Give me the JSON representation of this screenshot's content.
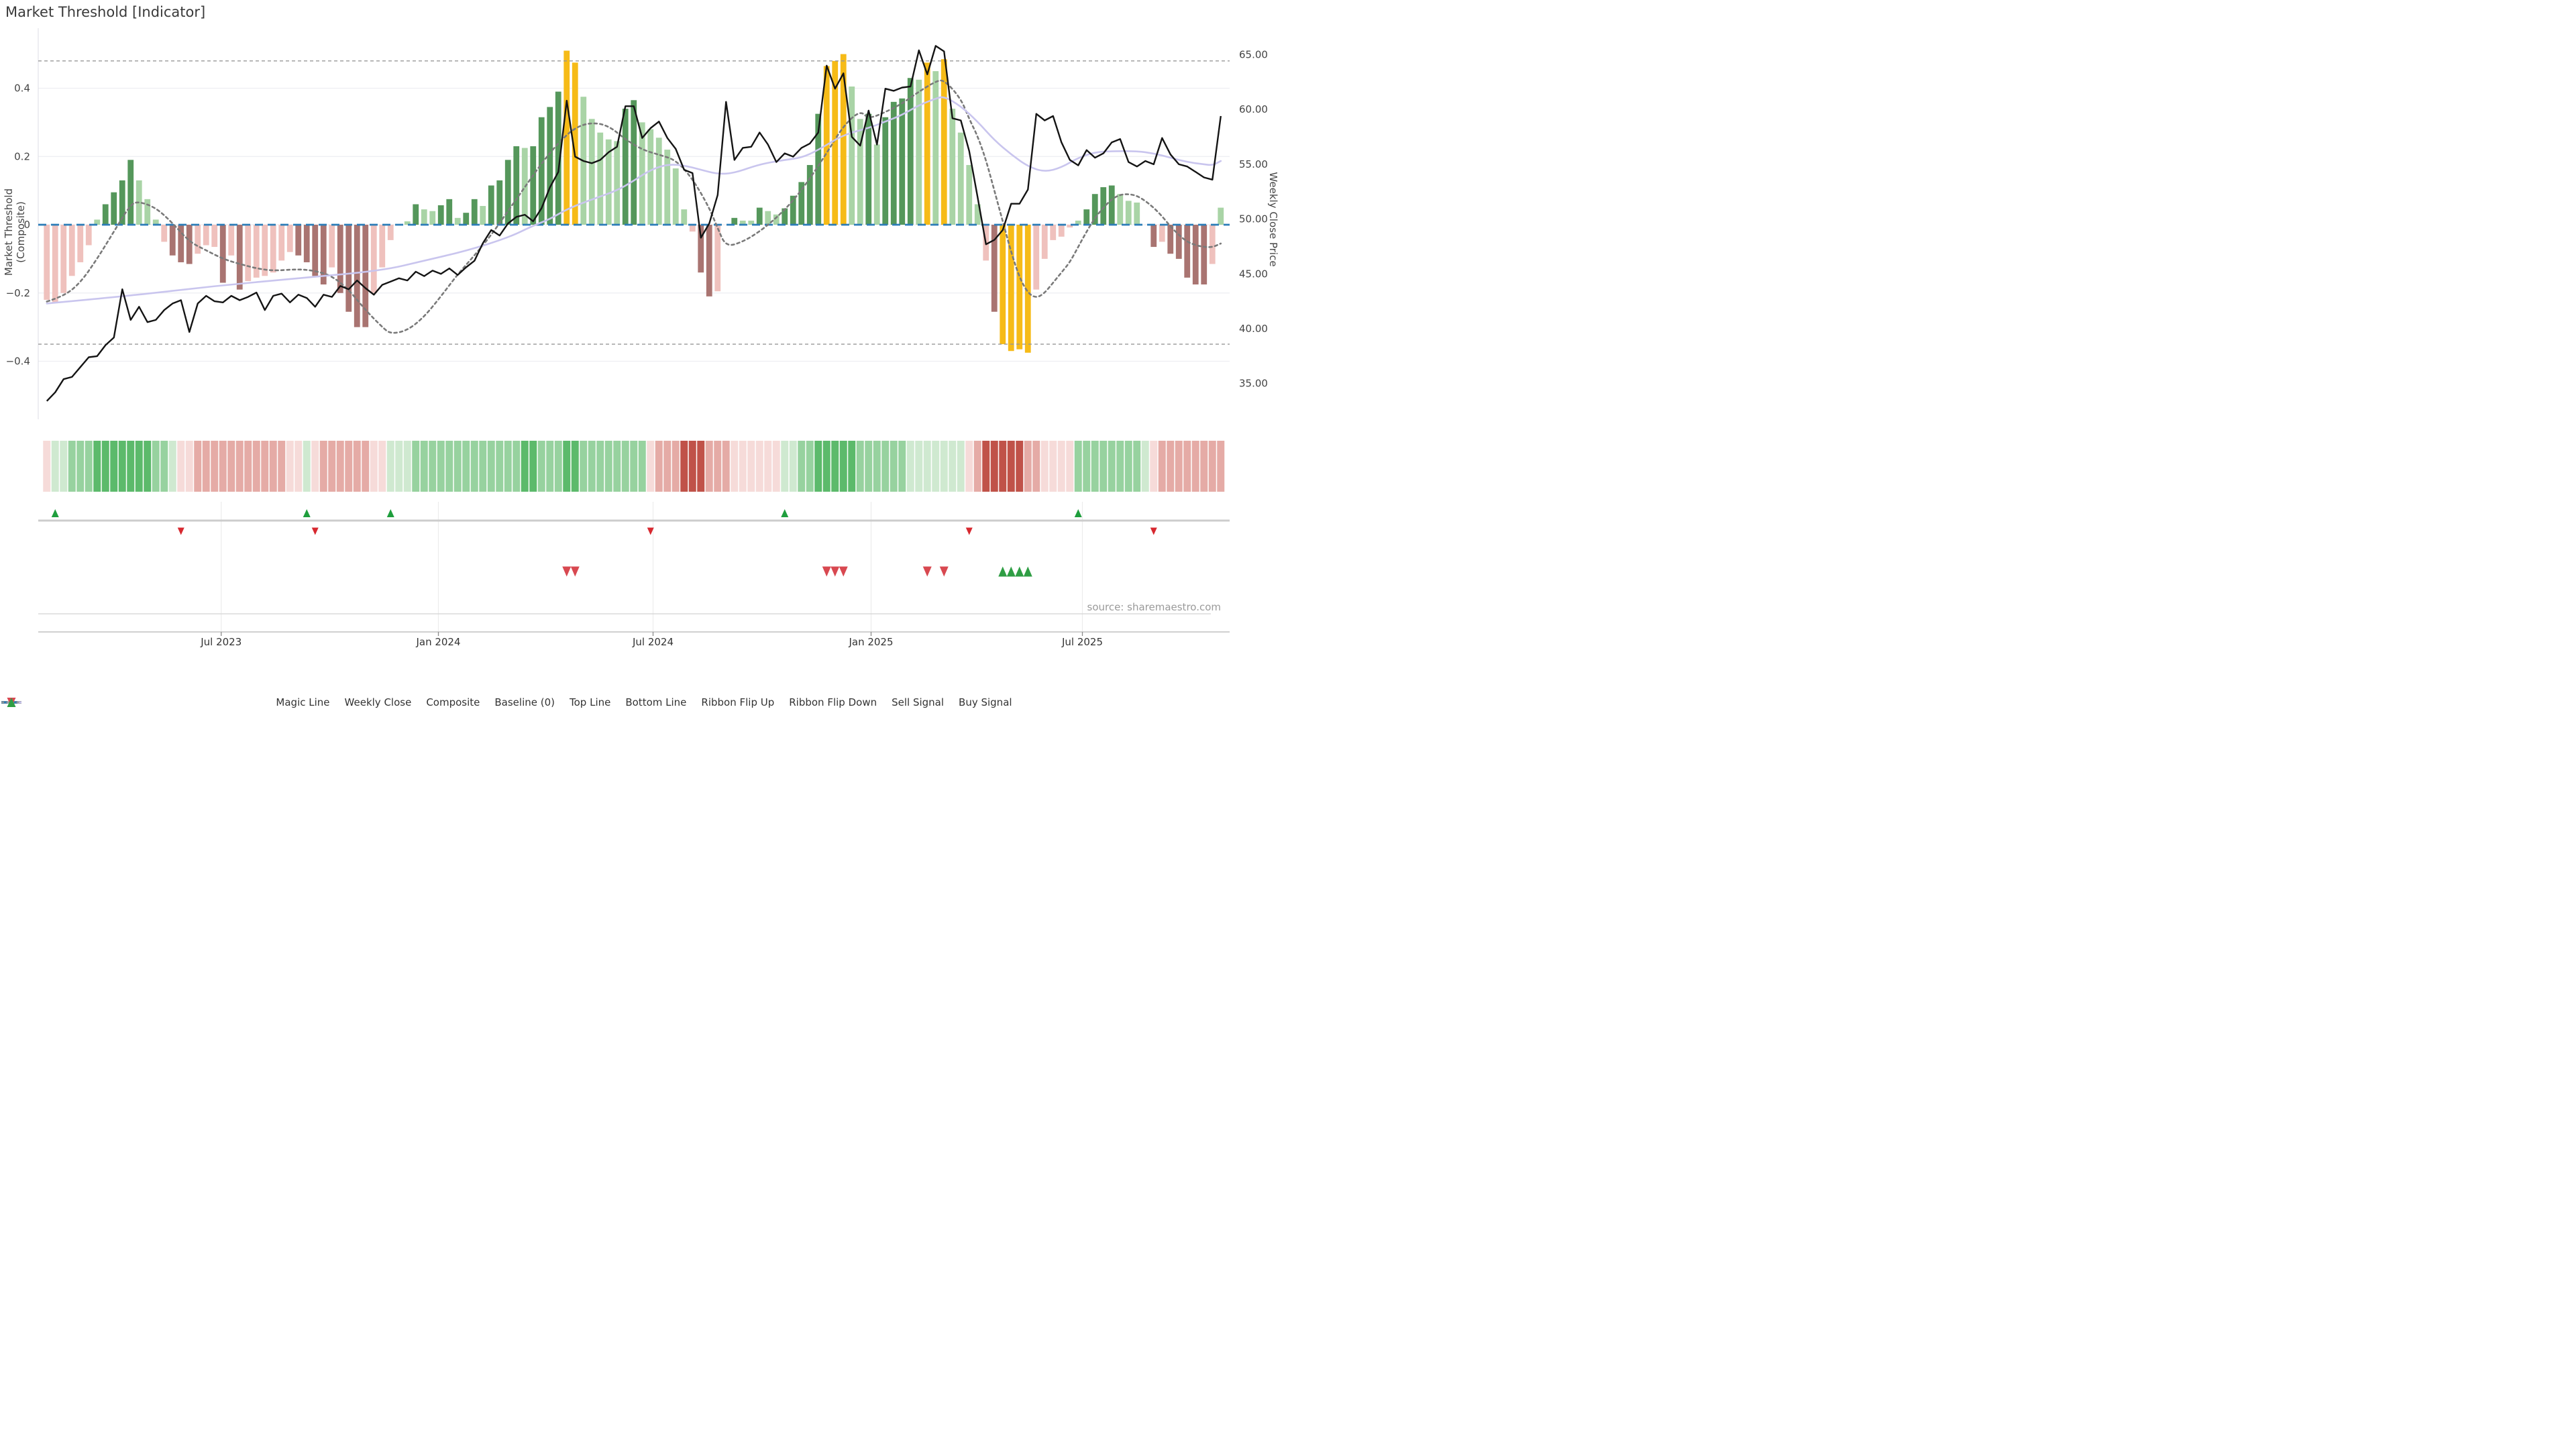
{
  "title": "Market Threshold [Indicator]",
  "source_note": "source: sharemaestro.com",
  "axes": {
    "left_label": "Market Threshold (Composite)",
    "right_label": "Weekly Close Price",
    "left_ticks": [
      {
        "label": "0.4",
        "value": 0.4
      },
      {
        "label": "0.2",
        "value": 0.2
      },
      {
        "label": "0",
        "value": 0.0
      },
      {
        "label": "−0.2",
        "value": -0.2
      },
      {
        "label": "−0.4",
        "value": -0.4
      }
    ],
    "right_ticks": [
      {
        "label": "65.00",
        "value": 65.0
      },
      {
        "label": "60.00",
        "value": 60.0
      },
      {
        "label": "55.00",
        "value": 55.0
      },
      {
        "label": "50.00",
        "value": 50.0
      },
      {
        "label": "45.00",
        "value": 45.0
      },
      {
        "label": "40.00",
        "value": 40.0
      },
      {
        "label": "35.00",
        "value": 35.0
      }
    ],
    "x_ticks": [
      {
        "label": "Jul 2023",
        "week": 20.8
      },
      {
        "label": "Jan 2024",
        "week": 46.7
      },
      {
        "label": "Jul 2024",
        "week": 72.3
      },
      {
        "label": "Jan 2025",
        "week": 98.3
      },
      {
        "label": "Jul 2025",
        "week": 123.5
      }
    ]
  },
  "legend": [
    {
      "label": "Magic Line",
      "type": "dotted-gray"
    },
    {
      "label": "Weekly Close",
      "type": "solid-black"
    },
    {
      "label": "Composite",
      "type": "solid-purple"
    },
    {
      "label": "Baseline (0)",
      "type": "dashed-blue"
    },
    {
      "label": "Top Line",
      "type": "dashed-gray"
    },
    {
      "label": "Bottom Line",
      "type": "dashed-gray"
    },
    {
      "label": "Ribbon Flip Up",
      "type": "triangle-up-green"
    },
    {
      "label": "Ribbon Flip Down",
      "type": "triangle-down-red"
    },
    {
      "label": "Sell Signal",
      "type": "triangle-down-red-large"
    },
    {
      "label": "Buy Signal",
      "type": "triangle-up-green-large"
    }
  ],
  "colors": {
    "dark_green": "#55975B",
    "light_green": "#A9D4A6",
    "gold": "#F6BB17",
    "pink": "#EFC1BD",
    "dark_red": "#A97471",
    "close_line": "#141414",
    "composite_line": "#C9C5EE",
    "magic_line": "#7A7A7A",
    "baseline": "#2B7CB8",
    "guide_line": "#979797",
    "grid": "#EDEEF2",
    "flip_up": "#1F9E3D",
    "flip_down": "#D7282F",
    "sell": "#D84850",
    "buy": "#2F9E44",
    "ribbon": {
      "g1": "#CFE9D0",
      "g2": "#97D29F",
      "g3": "#5CBA6B",
      "p1": "#F6DBD9",
      "p2": "#E5ABA6",
      "p3": "#C05249"
    }
  },
  "chart_data": {
    "type": "bar",
    "title": "Market Threshold [Indicator]",
    "xlabel": "",
    "ylabel_left": "Market Threshold (Composite)",
    "ylabel_right": "Weekly Close Price",
    "weeks": 141,
    "left_axis_range": [
      -0.57,
      0.57
    ],
    "right_axis_range": [
      33.0,
      66.5
    ],
    "top_line": 0.48,
    "bottom_line": -0.35,
    "baseline": 0.0,
    "grid": "horizontal-only",
    "legend_position": "bottom-center",
    "bars": {
      "values": [
        -0.22,
        -0.23,
        -0.2,
        -0.15,
        -0.11,
        -0.06,
        0.015,
        0.06,
        0.095,
        0.13,
        0.19,
        0.13,
        0.075,
        0.015,
        -0.05,
        -0.09,
        -0.11,
        -0.115,
        -0.085,
        -0.06,
        -0.065,
        -0.17,
        -0.09,
        -0.19,
        -0.165,
        -0.155,
        -0.15,
        -0.14,
        -0.105,
        -0.08,
        -0.09,
        -0.11,
        -0.15,
        -0.175,
        -0.125,
        -0.2,
        -0.255,
        -0.3,
        -0.3,
        -0.2,
        -0.125,
        -0.045,
        0,
        0.01,
        0.06,
        0.045,
        0.04,
        0.057,
        0.075,
        0.02,
        0.035,
        0.075,
        0.055,
        0.115,
        0.13,
        0.19,
        0.23,
        0.225,
        0.23,
        0.315,
        0.345,
        0.39,
        0.51,
        0.475,
        0.375,
        0.31,
        0.27,
        0.25,
        0.245,
        0.34,
        0.365,
        0.3,
        0.28,
        0.255,
        0.22,
        0.165,
        0.045,
        -0.02,
        -0.14,
        -0.21,
        -0.195,
        0,
        0.02,
        0.012,
        0.012,
        0.05,
        0.04,
        0.03,
        0.048,
        0.085,
        0.125,
        0.175,
        0.325,
        0.465,
        0.48,
        0.5,
        0.405,
        0.31,
        0.325,
        0.235,
        0.315,
        0.36,
        0.37,
        0.43,
        0.425,
        0.475,
        0.45,
        0.485,
        0.34,
        0.27,
        0.175,
        0.06,
        -0.105,
        -0.255,
        -0.35,
        -0.37,
        -0.365,
        -0.375,
        -0.19,
        -0.1,
        -0.045,
        -0.035,
        -0.008,
        0.012,
        0.045,
        0.09,
        0.11,
        0.115,
        0.09,
        0.07,
        0.065,
        0,
        -0.065,
        -0.05,
        -0.085,
        -0.1,
        -0.155,
        -0.175,
        -0.175,
        -0.115,
        0.05
      ],
      "colors": [
        "p",
        "p",
        "p",
        "p",
        "p",
        "p",
        "l",
        "d",
        "d",
        "d",
        "d",
        "l",
        "l",
        "l",
        "p",
        "r",
        "r",
        "r",
        "p",
        "p",
        "p",
        "r",
        "p",
        "r",
        "p",
        "p",
        "p",
        "p",
        "p",
        "p",
        "r",
        "r",
        "r",
        "r",
        "p",
        "r",
        "r",
        "r",
        "r",
        "p",
        "p",
        "p",
        "n",
        "l",
        "d",
        "l",
        "l",
        "d",
        "d",
        "l",
        "d",
        "d",
        "l",
        "d",
        "d",
        "d",
        "d",
        "l",
        "d",
        "d",
        "d",
        "d",
        "g",
        "g",
        "l",
        "l",
        "l",
        "l",
        "l",
        "d",
        "d",
        "l",
        "l",
        "l",
        "l",
        "l",
        "l",
        "p",
        "r",
        "r",
        "p",
        "n",
        "d",
        "l",
        "l",
        "d",
        "l",
        "l",
        "d",
        "d",
        "d",
        "d",
        "d",
        "g",
        "g",
        "g",
        "l",
        "l",
        "d",
        "l",
        "d",
        "d",
        "d",
        "d",
        "l",
        "g",
        "l",
        "g",
        "l",
        "l",
        "l",
        "l",
        "p",
        "r",
        "g",
        "g",
        "g",
        "g",
        "p",
        "p",
        "p",
        "p",
        "p",
        "l",
        "d",
        "d",
        "d",
        "d",
        "l",
        "l",
        "l",
        "n",
        "r",
        "p",
        "r",
        "r",
        "r",
        "r",
        "r",
        "p",
        "l"
      ]
    },
    "weekly_close": [
      33.4,
      34.2,
      35.4,
      35.6,
      36.5,
      37.4,
      37.5,
      38.5,
      39.2,
      43.6,
      40.8,
      42.0,
      40.6,
      40.8,
      41.7,
      42.3,
      42.6,
      39.7,
      42.3,
      43.0,
      42.5,
      42.4,
      43.0,
      42.6,
      42.9,
      43.3,
      41.7,
      43.0,
      43.2,
      42.4,
      43.1,
      42.8,
      42.0,
      43.1,
      42.9,
      43.9,
      43.6,
      44.4,
      43.7,
      43.1,
      44.0,
      44.3,
      44.6,
      44.4,
      45.2,
      44.8,
      45.3,
      45.0,
      45.5,
      44.9,
      45.6,
      46.2,
      47.8,
      49.0,
      48.5,
      49.6,
      50.2,
      50.4,
      49.8,
      51.0,
      52.9,
      54.3,
      60.8,
      55.7,
      55.3,
      55.1,
      55.4,
      56.1,
      56.6,
      60.3,
      60.3,
      57.4,
      58.3,
      58.9,
      57.4,
      56.4,
      54.5,
      54.2,
      48.3,
      49.6,
      52.2,
      60.7,
      55.4,
      56.5,
      56.6,
      57.9,
      56.8,
      55.2,
      56.0,
      55.7,
      56.5,
      56.9,
      57.9,
      64.0,
      61.9,
      63.3,
      57.5,
      56.7,
      59.9,
      56.8,
      61.9,
      61.7,
      62.0,
      62.1,
      65.4,
      63.2,
      65.8,
      65.3,
      59.2,
      59.0,
      56.2,
      52.0,
      47.7,
      48.1,
      49.0,
      51.4,
      51.4,
      52.7,
      59.6,
      59.0,
      59.4,
      57.0,
      55.4,
      54.9,
      56.3,
      55.6,
      56.0,
      57.0,
      57.3,
      55.2,
      54.8,
      55.3,
      55.0,
      57.4,
      55.9,
      55.0,
      54.8,
      54.3,
      53.8,
      53.6,
      59.4
    ],
    "composite_anchors": [
      [
        0,
        42.3
      ],
      [
        10,
        43.0
      ],
      [
        20,
        43.9
      ],
      [
        30,
        44.6
      ],
      [
        40,
        45.3
      ],
      [
        45,
        46.2
      ],
      [
        50,
        47.1
      ],
      [
        55,
        48.3
      ],
      [
        58,
        49.4
      ],
      [
        60,
        50.0
      ],
      [
        62,
        50.9
      ],
      [
        65,
        51.8
      ],
      [
        68,
        52.6
      ],
      [
        70,
        53.5
      ],
      [
        72,
        54.5
      ],
      [
        74,
        55.0
      ],
      [
        76,
        54.9
      ],
      [
        78,
        54.5
      ],
      [
        80,
        54.1
      ],
      [
        82,
        54.2
      ],
      [
        85,
        55.0
      ],
      [
        88,
        55.4
      ],
      [
        90,
        55.6
      ],
      [
        92,
        56.3
      ],
      [
        95,
        57.7
      ],
      [
        98,
        58.3
      ],
      [
        100,
        58.9
      ],
      [
        102,
        59.5
      ],
      [
        104,
        60.4
      ],
      [
        106,
        61.0
      ],
      [
        107,
        61.2
      ],
      [
        109,
        60.3
      ],
      [
        111,
        58.9
      ],
      [
        113,
        57.2
      ],
      [
        115,
        55.9
      ],
      [
        117,
        54.8
      ],
      [
        119,
        54.3
      ],
      [
        121,
        54.7
      ],
      [
        123,
        55.6
      ],
      [
        125,
        56.1
      ],
      [
        127,
        56.2
      ],
      [
        130,
        56.2
      ],
      [
        132,
        56.0
      ],
      [
        134,
        55.6
      ],
      [
        136,
        55.2
      ],
      [
        138,
        55.0
      ],
      [
        139,
        54.9
      ],
      [
        140,
        55.3
      ]
    ],
    "magic_anchors": [
      [
        0,
        -0.225
      ],
      [
        2,
        -0.21
      ],
      [
        4,
        -0.17
      ],
      [
        6,
        -0.1
      ],
      [
        8,
        -0.02
      ],
      [
        10,
        0.06
      ],
      [
        11,
        0.068
      ],
      [
        13,
        0.05
      ],
      [
        15,
        0.005
      ],
      [
        17,
        -0.05
      ],
      [
        19,
        -0.075
      ],
      [
        21,
        -0.1
      ],
      [
        23,
        -0.115
      ],
      [
        25,
        -0.128
      ],
      [
        27,
        -0.135
      ],
      [
        30,
        -0.13
      ],
      [
        32,
        -0.135
      ],
      [
        34,
        -0.15
      ],
      [
        36,
        -0.19
      ],
      [
        38,
        -0.25
      ],
      [
        40,
        -0.3
      ],
      [
        41,
        -0.32
      ],
      [
        43,
        -0.31
      ],
      [
        45,
        -0.27
      ],
      [
        47,
        -0.21
      ],
      [
        49,
        -0.145
      ],
      [
        51,
        -0.09
      ],
      [
        53,
        -0.03
      ],
      [
        55,
        0.04
      ],
      [
        57,
        0.11
      ],
      [
        59,
        0.18
      ],
      [
        61,
        0.24
      ],
      [
        63,
        0.285
      ],
      [
        65,
        0.3
      ],
      [
        67,
        0.29
      ],
      [
        69,
        0.25
      ],
      [
        71,
        0.22
      ],
      [
        73,
        0.205
      ],
      [
        75,
        0.19
      ],
      [
        77,
        0.135
      ],
      [
        79,
        0.05
      ],
      [
        80,
        -0.01
      ],
      [
        81,
        -0.065
      ],
      [
        83,
        -0.05
      ],
      [
        85,
        -0.02
      ],
      [
        87,
        0.02
      ],
      [
        89,
        0.07
      ],
      [
        91,
        0.135
      ],
      [
        93,
        0.21
      ],
      [
        95,
        0.29
      ],
      [
        97,
        0.335
      ],
      [
        98,
        0.31
      ],
      [
        100,
        0.33
      ],
      [
        102,
        0.355
      ],
      [
        104,
        0.39
      ],
      [
        106,
        0.42
      ],
      [
        107,
        0.425
      ],
      [
        109,
        0.37
      ],
      [
        110,
        0.31
      ],
      [
        111,
        0.26
      ],
      [
        112,
        0.19
      ],
      [
        113,
        0.1
      ],
      [
        114,
        0.01
      ],
      [
        115,
        -0.08
      ],
      [
        116,
        -0.155
      ],
      [
        117,
        -0.2
      ],
      [
        118,
        -0.215
      ],
      [
        119,
        -0.2
      ],
      [
        120,
        -0.17
      ],
      [
        121,
        -0.14
      ],
      [
        122,
        -0.11
      ],
      [
        123,
        -0.065
      ],
      [
        124,
        -0.02
      ],
      [
        125,
        0.02
      ],
      [
        126,
        0.05
      ],
      [
        127,
        0.075
      ],
      [
        128,
        0.088
      ],
      [
        129,
        0.09
      ],
      [
        130,
        0.085
      ],
      [
        131,
        0.07
      ],
      [
        132,
        0.05
      ],
      [
        133,
        0.025
      ],
      [
        134,
        -0.005
      ],
      [
        135,
        -0.03
      ],
      [
        136,
        -0.05
      ],
      [
        137,
        -0.06
      ],
      [
        138,
        -0.065
      ],
      [
        139,
        -0.066
      ],
      [
        140,
        -0.055
      ]
    ],
    "ribbon": [
      "p1",
      "g1",
      "g1",
      "g2",
      "g2",
      "g2",
      "g3",
      "g3",
      "g3",
      "g3",
      "g3",
      "g3",
      "g3",
      "g2",
      "g2",
      "g1",
      "p1",
      "p1",
      "p2",
      "p2",
      "p2",
      "p2",
      "p2",
      "p2",
      "p2",
      "p2",
      "p2",
      "p2",
      "p2",
      "p1",
      "p1",
      "g1",
      "p1",
      "p2",
      "p2",
      "p2",
      "p2",
      "p2",
      "p2",
      "p1",
      "p1",
      "g1",
      "g1",
      "g1",
      "g2",
      "g2",
      "g2",
      "g2",
      "g2",
      "g2",
      "g2",
      "g2",
      "g2",
      "g2",
      "g2",
      "g2",
      "g2",
      "g3",
      "g3",
      "g2",
      "g2",
      "g2",
      "g3",
      "g3",
      "g2",
      "g2",
      "g2",
      "g2",
      "g2",
      "g2",
      "g2",
      "g2",
      "p1",
      "p2",
      "p2",
      "p2",
      "p3",
      "p3",
      "p3",
      "p2",
      "p2",
      "p2",
      "p1",
      "p1",
      "p1",
      "p1",
      "p1",
      "p1",
      "g1",
      "g1",
      "g2",
      "g2",
      "g3",
      "g3",
      "g3",
      "g3",
      "g3",
      "g2",
      "g2",
      "g2",
      "g2",
      "g2",
      "g2",
      "g1",
      "g1",
      "g1",
      "g1",
      "g1",
      "g1",
      "g1",
      "p1",
      "p2",
      "p3",
      "p3",
      "p3",
      "p3",
      "p3",
      "p2",
      "p2",
      "p1",
      "p1",
      "p1",
      "p1",
      "g2",
      "g2",
      "g2",
      "g2",
      "g2",
      "g2",
      "g2",
      "g2",
      "g1",
      "p1",
      "p2",
      "p2",
      "p2",
      "p2",
      "p2",
      "p2",
      "p2",
      "p2"
    ],
    "signals": {
      "ribbon_flip_up_weeks": [
        1,
        31,
        41,
        88,
        123
      ],
      "ribbon_flip_down_weeks": [
        16,
        32,
        72,
        110,
        132
      ],
      "sell_signal_weeks": [
        62,
        63,
        93,
        94,
        95,
        105,
        107
      ],
      "buy_signal_weeks": [
        114,
        115,
        116,
        117
      ]
    }
  }
}
